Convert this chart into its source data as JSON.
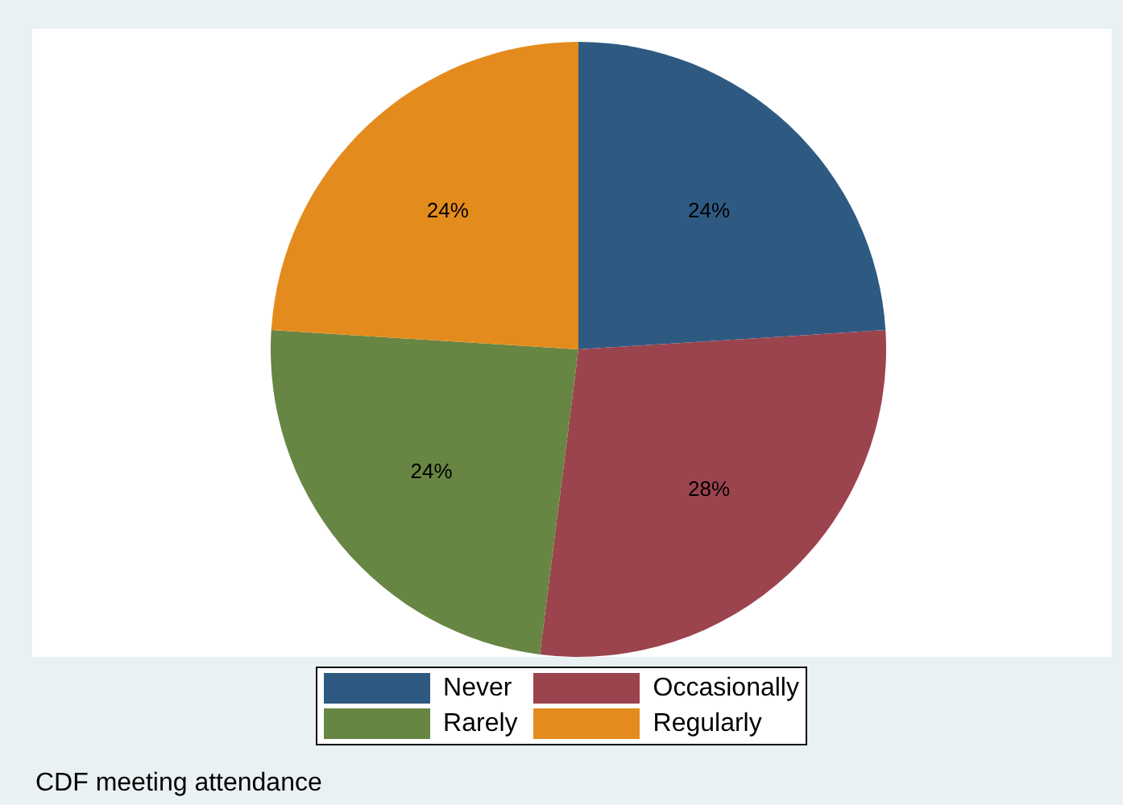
{
  "chart_data": {
    "type": "pie",
    "categories": [
      "Never",
      "Occasionally",
      "Rarely",
      "Regularly"
    ],
    "values": [
      24,
      28,
      24,
      24
    ],
    "value_labels": [
      "24%",
      "28%",
      "24%",
      "24%"
    ],
    "colors": [
      "#2e5a82",
      "#9b444e",
      "#678543",
      "#e48b1e"
    ],
    "legend": "bottom",
    "annotations": [
      "CDF meeting attendance"
    ]
  }
}
